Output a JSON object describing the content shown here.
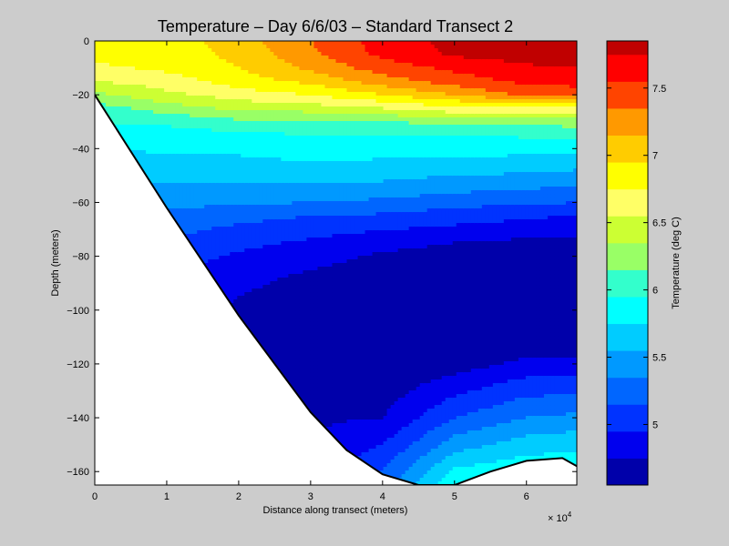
{
  "figure": {
    "background": "#cccccc"
  },
  "chart_data": {
    "type": "heatmap",
    "subtype": "filled-contour",
    "title": "Temperature – Day 6/6/03 – Standard Transect 2",
    "xlabel": "Distance along transect (meters)",
    "ylabel": "Depth (meters)",
    "x_multiplier_label": "× 10",
    "x_multiplier_exponent": "4",
    "x_ticks": [
      "0",
      "1",
      "2",
      "3",
      "4",
      "5",
      "6"
    ],
    "y_ticks": [
      "0",
      "−20",
      "−40",
      "−60",
      "−80",
      "−100",
      "−120",
      "−140",
      "−160"
    ],
    "xlim": [
      0,
      67000
    ],
    "ylim": [
      -165,
      0
    ],
    "grid": false,
    "colorbar": {
      "label": "Temperature (deg C)",
      "ticks": [
        "5",
        "5.5",
        "6",
        "6.5",
        "7",
        "7.5"
      ],
      "tick_values": [
        5,
        5.5,
        6,
        6.5,
        7,
        7.5
      ],
      "range": [
        4.55,
        7.85
      ],
      "levels": [
        {
          "from": 4.55,
          "to": 4.75,
          "color": "#0000aa"
        },
        {
          "from": 4.75,
          "to": 4.95,
          "color": "#0000ee"
        },
        {
          "from": 4.95,
          "to": 5.15,
          "color": "#0033ff"
        },
        {
          "from": 5.15,
          "to": 5.35,
          "color": "#0066ff"
        },
        {
          "from": 5.35,
          "to": 5.55,
          "color": "#0099ff"
        },
        {
          "from": 5.55,
          "to": 5.75,
          "color": "#00ccff"
        },
        {
          "from": 5.75,
          "to": 5.95,
          "color": "#00ffff"
        },
        {
          "from": 5.95,
          "to": 6.15,
          "color": "#33ffcc"
        },
        {
          "from": 6.15,
          "to": 6.35,
          "color": "#99ff66"
        },
        {
          "from": 6.35,
          "to": 6.55,
          "color": "#ccff33"
        },
        {
          "from": 6.55,
          "to": 6.75,
          "color": "#ffff66"
        },
        {
          "from": 6.75,
          "to": 6.95,
          "color": "#ffff00"
        },
        {
          "from": 6.95,
          "to": 7.15,
          "color": "#ffcc00"
        },
        {
          "from": 7.15,
          "to": 7.35,
          "color": "#ff9900"
        },
        {
          "from": 7.35,
          "to": 7.55,
          "color": "#ff4400"
        },
        {
          "from": 7.55,
          "to": 7.75,
          "color": "#ff0000"
        },
        {
          "from": 7.75,
          "to": 7.85,
          "color": "#c00000"
        }
      ]
    },
    "bathymetry": {
      "x": [
        0,
        10000,
        20000,
        30000,
        35000,
        40000,
        45000,
        50000,
        55000,
        60000,
        65000,
        67000
      ],
      "depth": [
        -20,
        -62,
        -102,
        -138,
        -152,
        -161,
        -165,
        -165,
        -160,
        -156,
        -155,
        -158
      ]
    },
    "temperature_profiles": {
      "x": [
        0,
        10000,
        20000,
        30000,
        40000,
        50000,
        60000,
        67000
      ],
      "depth": [
        0,
        -5,
        -10,
        -15,
        -20,
        -25,
        -30,
        -35,
        -40,
        -45,
        -50,
        -55,
        -60,
        -65,
        -70,
        -75,
        -80,
        -85,
        -90,
        -95,
        -100,
        -110,
        -120,
        -130,
        -140,
        -150,
        -160,
        -165
      ],
      "rows": [
        [
          6.85,
          6.85,
          7.05,
          7.35,
          7.65,
          7.8,
          7.85,
          7.85
        ],
        [
          6.85,
          6.85,
          7.0,
          7.3,
          7.6,
          7.78,
          7.83,
          7.83
        ],
        [
          6.7,
          6.8,
          6.95,
          7.2,
          7.45,
          7.6,
          7.72,
          7.75
        ],
        [
          6.55,
          6.65,
          6.85,
          7.0,
          7.25,
          7.45,
          7.6,
          7.62
        ],
        [
          6.3,
          6.5,
          6.65,
          6.75,
          6.95,
          7.15,
          7.4,
          7.45
        ],
        [
          6.05,
          6.25,
          6.4,
          6.45,
          6.55,
          6.7,
          6.7,
          6.7
        ],
        [
          5.95,
          6.0,
          6.1,
          6.1,
          6.15,
          6.2,
          6.2,
          6.25
        ],
        [
          5.85,
          5.85,
          5.9,
          5.95,
          5.95,
          5.95,
          5.98,
          6.0
        ],
        [
          5.75,
          5.78,
          5.8,
          5.85,
          5.85,
          5.82,
          5.82,
          5.8
        ],
        [
          5.65,
          5.7,
          5.7,
          5.75,
          5.72,
          5.7,
          5.68,
          5.65
        ],
        [
          5.55,
          5.6,
          5.62,
          5.62,
          5.6,
          5.55,
          5.52,
          5.48
        ],
        [
          5.5,
          5.5,
          5.5,
          5.5,
          5.48,
          5.4,
          5.36,
          5.3
        ],
        [
          5.45,
          5.4,
          5.38,
          5.35,
          5.3,
          5.22,
          5.18,
          5.15
        ],
        [
          5.4,
          5.3,
          5.22,
          5.15,
          5.12,
          5.05,
          4.98,
          4.95
        ],
        [
          5.35,
          5.22,
          5.1,
          5.02,
          4.96,
          4.9,
          4.85,
          4.8
        ],
        [
          5.3,
          5.12,
          5.0,
          4.92,
          4.82,
          4.75,
          4.7,
          4.7
        ],
        [
          5.25,
          5.05,
          4.92,
          4.82,
          4.72,
          4.65,
          4.62,
          4.6
        ],
        [
          5.2,
          5.0,
          4.85,
          4.75,
          4.68,
          4.62,
          4.6,
          4.6
        ],
        [
          5.2,
          4.95,
          4.8,
          4.68,
          4.63,
          4.6,
          4.6,
          4.6
        ],
        [
          5.2,
          4.92,
          4.75,
          4.64,
          4.6,
          4.6,
          4.6,
          4.6
        ],
        [
          5.2,
          4.9,
          4.72,
          4.62,
          4.6,
          4.6,
          4.6,
          4.6
        ],
        [
          5.2,
          4.88,
          4.7,
          4.6,
          4.6,
          4.6,
          4.6,
          4.6
        ],
        [
          5.2,
          4.88,
          4.7,
          4.62,
          4.6,
          4.65,
          4.8,
          4.8
        ],
        [
          5.2,
          4.88,
          4.72,
          4.68,
          4.65,
          4.9,
          5.1,
          5.1
        ],
        [
          5.2,
          4.88,
          4.75,
          4.72,
          4.75,
          5.15,
          5.35,
          5.4
        ],
        [
          5.2,
          4.9,
          4.78,
          4.75,
          4.95,
          5.45,
          5.65,
          5.7
        ],
        [
          5.2,
          4.9,
          4.8,
          4.8,
          5.15,
          5.8,
          5.9,
          5.9
        ],
        [
          5.2,
          4.9,
          4.8,
          4.8,
          5.3,
          5.9,
          5.95,
          5.95
        ]
      ]
    }
  }
}
